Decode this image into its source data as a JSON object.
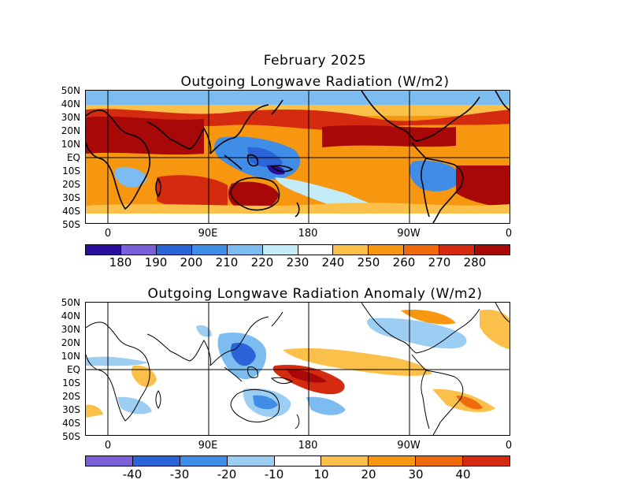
{
  "page_title": "February 2025",
  "maps": [
    {
      "title": "Outgoing Longwave Radiation (W/m2)",
      "lat_labels": [
        "50N",
        "40N",
        "30N",
        "20N",
        "10N",
        "EQ",
        "10S",
        "20S",
        "30S",
        "40S",
        "50S"
      ],
      "lon_labels": [
        "0",
        "90E",
        "180",
        "90W",
        "0"
      ],
      "colorbar": {
        "colors": [
          "#2a0f9e",
          "#7a5fd9",
          "#2b63d9",
          "#3f8de6",
          "#7cbcf0",
          "#c4ecf8",
          "#ffffff",
          "#fbc04a",
          "#f7960f",
          "#ef6a0a",
          "#d42a10",
          "#a80808"
        ],
        "labels": [
          "180",
          "190",
          "200",
          "210",
          "220",
          "230",
          "240",
          "250",
          "260",
          "270",
          "280"
        ]
      }
    },
    {
      "title": "Outgoing Longwave Radiation Anomaly (W/m2)",
      "lat_labels": [
        "50N",
        "40N",
        "30N",
        "20N",
        "10N",
        "EQ",
        "10S",
        "20S",
        "30S",
        "40S",
        "50S"
      ],
      "lon_labels": [
        "0",
        "90E",
        "180",
        "90W",
        "0"
      ],
      "colorbar": {
        "colors": [
          "#7a5fd9",
          "#2b63d9",
          "#3f8de6",
          "#9ccdf2",
          "#ffffff",
          "#fbc04a",
          "#f7960f",
          "#ef6a0a",
          "#d42a10"
        ],
        "labels": [
          "-40",
          "-30",
          "-20",
          "-10",
          "10",
          "20",
          "30",
          "40"
        ]
      }
    }
  ]
}
